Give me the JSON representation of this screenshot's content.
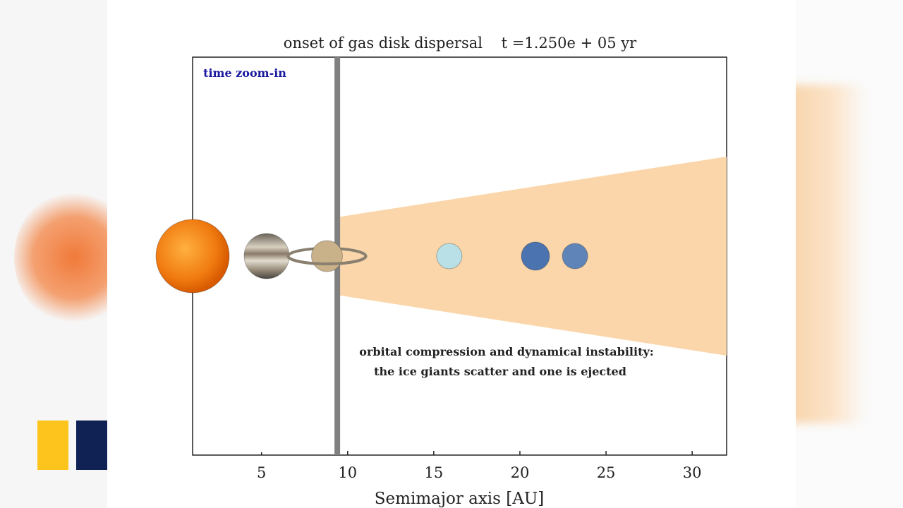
{
  "chart_data": {
    "type": "scatter",
    "title": "onset of gas disk dispersal    t =1.250e + 05 yr",
    "xlabel": "Semimajor axis [AU]",
    "ylabel": "",
    "xlim": [
      1,
      32
    ],
    "ylim": [
      -1,
      1
    ],
    "xticks": [
      5,
      10,
      15,
      20,
      25,
      30
    ],
    "xtick_labels": [
      "5",
      "10",
      "15",
      "20",
      "25",
      "30"
    ],
    "zoom_marker_x": 9.4,
    "gas_disk": {
      "x_start": 9.5,
      "x_end": 32,
      "half_height_start": 0.197,
      "half_height_end": 0.5,
      "color": "#fad6aa"
    },
    "bodies": [
      {
        "name": "Sun",
        "a": 1.0,
        "size": 52,
        "color": "#f07a1a"
      },
      {
        "name": "Jupiter",
        "a": 5.3,
        "size": 32,
        "color": "#a89a86"
      },
      {
        "name": "Saturn",
        "a": 8.8,
        "size": 22,
        "color": "#c9b18a",
        "rings": true
      },
      {
        "name": "Uranus",
        "a": 15.9,
        "size": 18,
        "color": "#b8e0e6"
      },
      {
        "name": "Neptune",
        "a": 20.9,
        "size": 20,
        "color": "#4a73b0"
      },
      {
        "name": "Ice giant",
        "a": 23.2,
        "size": 18,
        "color": "#5f84b8"
      }
    ],
    "annotations": {
      "zoom_label": "time zoom-in",
      "zoom_label_color": "#1a1aa0",
      "instability_line1": "orbital compression and dynamical instability:",
      "instability_line2": "the ice giants scatter and one is ejected"
    }
  }
}
